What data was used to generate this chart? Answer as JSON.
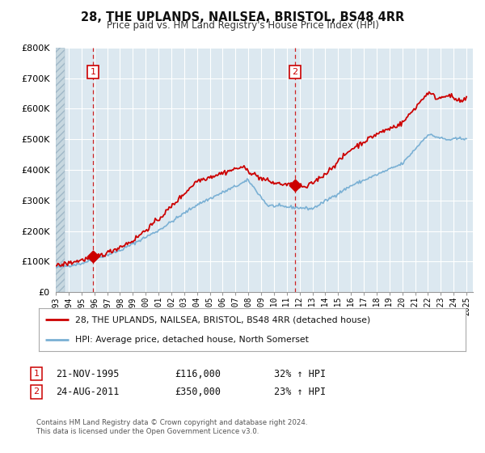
{
  "title": "28, THE UPLANDS, NAILSEA, BRISTOL, BS48 4RR",
  "subtitle": "Price paid vs. HM Land Registry's House Price Index (HPI)",
  "ylim": [
    0,
    800000
  ],
  "yticks": [
    0,
    100000,
    200000,
    300000,
    400000,
    500000,
    600000,
    700000,
    800000
  ],
  "ytick_labels": [
    "£0",
    "£100K",
    "£200K",
    "£300K",
    "£400K",
    "£500K",
    "£600K",
    "£700K",
    "£800K"
  ],
  "xlim_start": 1993.0,
  "xlim_end": 2025.5,
  "xticks": [
    1993,
    1994,
    1995,
    1996,
    1997,
    1998,
    1999,
    2000,
    2001,
    2002,
    2003,
    2004,
    2005,
    2006,
    2007,
    2008,
    2009,
    2010,
    2011,
    2012,
    2013,
    2014,
    2015,
    2016,
    2017,
    2018,
    2019,
    2020,
    2021,
    2022,
    2023,
    2024,
    2025
  ],
  "transaction1_date": 1995.896,
  "transaction1_price": 116000,
  "transaction1_label": "1",
  "transaction2_date": 2011.645,
  "transaction2_price": 350000,
  "transaction2_label": "2",
  "line_color_property": "#cc0000",
  "line_color_hpi": "#7ab0d4",
  "background_color": "#dce8f0",
  "grid_color": "#ffffff",
  "hatch_color": "#c0cdd5",
  "legend_label_property": "28, THE UPLANDS, NAILSEA, BRISTOL, BS48 4RR (detached house)",
  "legend_label_hpi": "HPI: Average price, detached house, North Somerset",
  "annotation1_date": "21-NOV-1995",
  "annotation1_price": "£116,000",
  "annotation1_hpi": "32% ↑ HPI",
  "annotation2_date": "24-AUG-2011",
  "annotation2_price": "£350,000",
  "annotation2_hpi": "23% ↑ HPI",
  "footer1": "Contains HM Land Registry data © Crown copyright and database right 2024.",
  "footer2": "This data is licensed under the Open Government Licence v3.0."
}
